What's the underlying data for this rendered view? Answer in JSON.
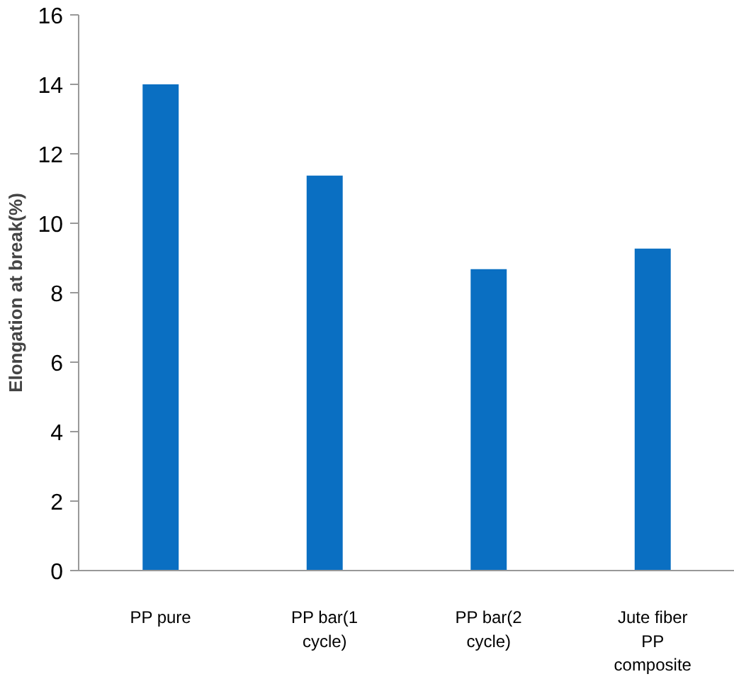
{
  "chart_data": {
    "type": "bar",
    "ylabel": "Elongation at break(%)",
    "categories": [
      "PP pure",
      "PP bar(1 cycle)",
      "PP bar(2 cycle)",
      "Jute fiber PP composite"
    ],
    "values": [
      14.0,
      11.37,
      8.68,
      9.27
    ],
    "color": "#0a6fc2",
    "ylim": [
      0,
      16
    ],
    "yticks": [
      0,
      2,
      4,
      6,
      8,
      10,
      12,
      14,
      16
    ],
    "grid": false
  }
}
